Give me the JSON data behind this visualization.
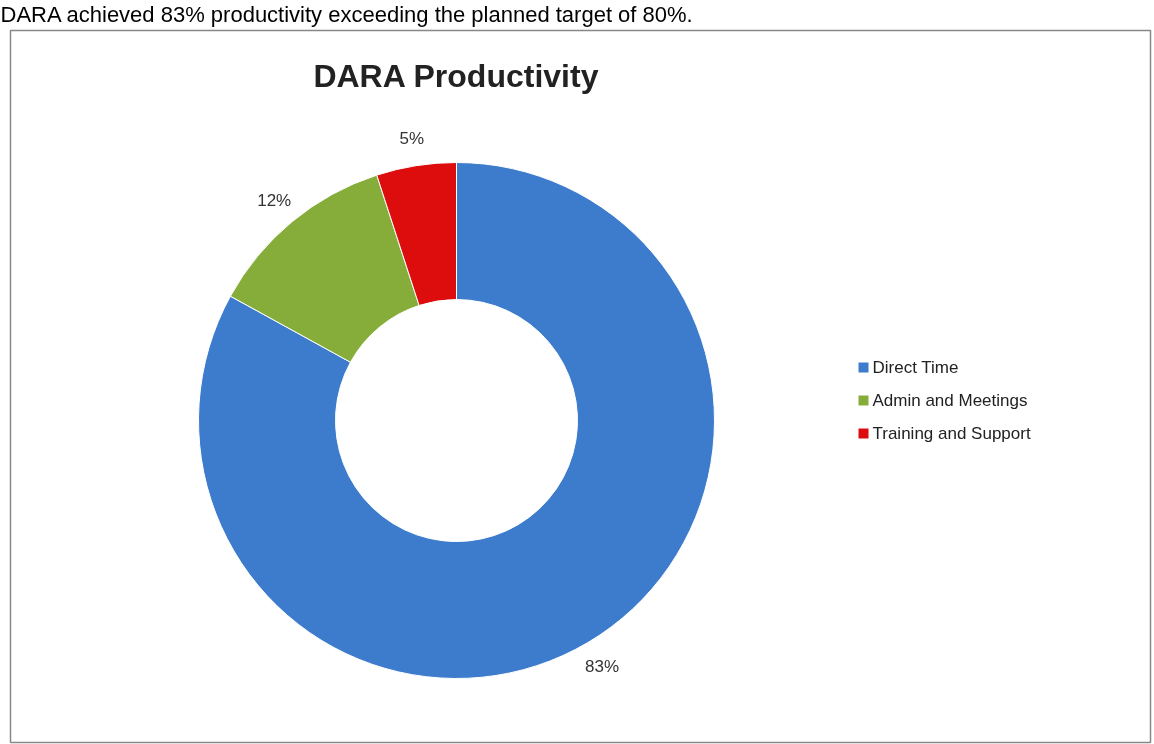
{
  "chart_data": {
    "type": "donut",
    "title": "DARA Productivity",
    "annotations": [
      "DARA achieved 83% productivity exceeding the planned target of 80%."
    ],
    "categories": [
      "Direct Time",
      "Admin and Meetings",
      "Training and Support"
    ],
    "values": [
      83,
      12,
      5
    ],
    "value_labels": [
      "83%",
      "12%",
      "5%"
    ],
    "colors": [
      "#3d7ccc",
      "#86ad3a",
      "#dd0d0d"
    ],
    "legend": "right"
  }
}
